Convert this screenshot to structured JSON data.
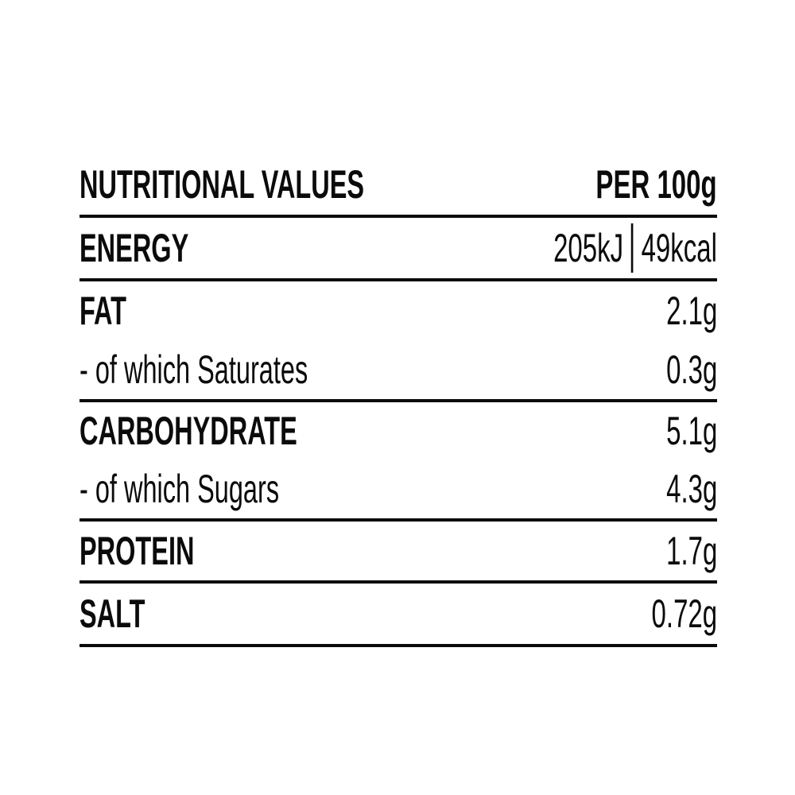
{
  "table": {
    "header": {
      "title": "NUTRITIONAL VALUES",
      "per_label": "PER 100g"
    },
    "energy": {
      "label": "ENERGY",
      "value_kj": "205kJ",
      "value_kcal": "49kcal"
    },
    "rows": [
      {
        "label": "FAT",
        "value": "2.1g"
      },
      {
        "label": "- of which Saturates",
        "value": "0.3g"
      },
      {
        "label": "CARBOHYDRATE",
        "value": "5.1g"
      },
      {
        "label": "- of which Sugars",
        "value": "4.3g"
      },
      {
        "label": "PROTEIN",
        "value": "1.7g"
      },
      {
        "label": "SALT",
        "value": "0.72g"
      }
    ],
    "colors": {
      "text": "#0b0b0b",
      "background": "#ffffff",
      "rule": "#0b0b0b"
    }
  }
}
